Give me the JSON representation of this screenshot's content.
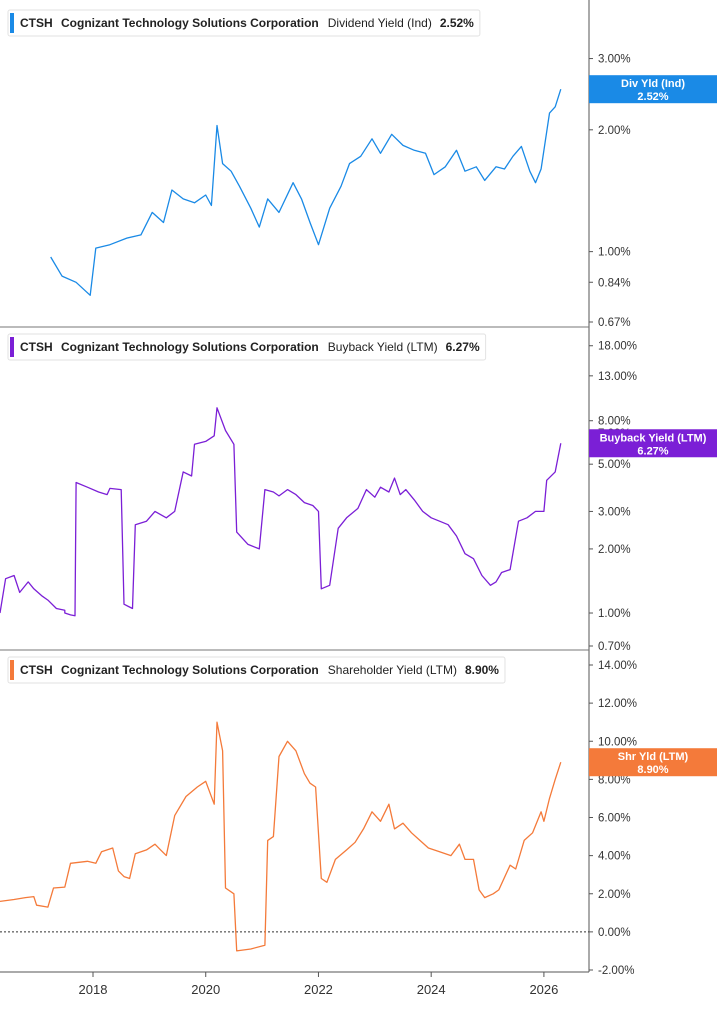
{
  "chart_data": [
    {
      "type": "line",
      "ticker": "CTSH",
      "company": "Cognizant Technology Solutions Corporation",
      "metric": "Dividend Yield (Ind)",
      "current_value": "2.52%",
      "flag_label": "Div Yld (Ind)",
      "flag_value": "2.52%",
      "color": "#1a8ae6",
      "scale": "log",
      "ylim": [
        0.67,
        4.0
      ],
      "y_ticks": [
        {
          "v": 3.0,
          "label": "3.00%"
        },
        {
          "v": 2.0,
          "label": "2.00%"
        },
        {
          "v": 1.0,
          "label": "1.00%"
        },
        {
          "v": 0.84,
          "label": "0.84%"
        },
        {
          "v": 0.67,
          "label": "0.67%"
        }
      ],
      "points": [
        [
          2017.25,
          0.97
        ],
        [
          2017.45,
          0.87
        ],
        [
          2017.7,
          0.84
        ],
        [
          2017.95,
          0.78
        ],
        [
          2018.05,
          1.02
        ],
        [
          2018.3,
          1.04
        ],
        [
          2018.6,
          1.08
        ],
        [
          2018.85,
          1.1
        ],
        [
          2019.05,
          1.25
        ],
        [
          2019.25,
          1.18
        ],
        [
          2019.4,
          1.42
        ],
        [
          2019.6,
          1.35
        ],
        [
          2019.8,
          1.32
        ],
        [
          2020.0,
          1.38
        ],
        [
          2020.1,
          1.3
        ],
        [
          2020.2,
          2.05
        ],
        [
          2020.3,
          1.65
        ],
        [
          2020.45,
          1.58
        ],
        [
          2020.6,
          1.45
        ],
        [
          2020.8,
          1.28
        ],
        [
          2020.95,
          1.15
        ],
        [
          2021.1,
          1.35
        ],
        [
          2021.3,
          1.25
        ],
        [
          2021.55,
          1.48
        ],
        [
          2021.7,
          1.35
        ],
        [
          2021.85,
          1.18
        ],
        [
          2022.0,
          1.04
        ],
        [
          2022.2,
          1.28
        ],
        [
          2022.4,
          1.45
        ],
        [
          2022.55,
          1.65
        ],
        [
          2022.75,
          1.72
        ],
        [
          2022.95,
          1.9
        ],
        [
          2023.1,
          1.75
        ],
        [
          2023.3,
          1.95
        ],
        [
          2023.5,
          1.83
        ],
        [
          2023.7,
          1.78
        ],
        [
          2023.9,
          1.75
        ],
        [
          2024.05,
          1.55
        ],
        [
          2024.25,
          1.62
        ],
        [
          2024.45,
          1.78
        ],
        [
          2024.6,
          1.58
        ],
        [
          2024.8,
          1.62
        ],
        [
          2024.95,
          1.5
        ],
        [
          2025.15,
          1.62
        ],
        [
          2025.3,
          1.6
        ],
        [
          2025.45,
          1.72
        ],
        [
          2025.6,
          1.82
        ],
        [
          2025.75,
          1.58
        ],
        [
          2025.85,
          1.48
        ],
        [
          2025.95,
          1.6
        ],
        [
          2026.1,
          2.2
        ],
        [
          2026.2,
          2.28
        ],
        [
          2026.3,
          2.52
        ]
      ]
    },
    {
      "type": "line",
      "ticker": "CTSH",
      "company": "Cognizant Technology Solutions Corporation",
      "metric": "Buyback Yield (LTM)",
      "current_value": "6.27%",
      "flag_label": "Buyback Yield (LTM)",
      "flag_value": "6.27%",
      "color": "#7b1fd6",
      "scale": "log",
      "ylim": [
        0.7,
        20.0
      ],
      "y_ticks": [
        {
          "v": 18.0,
          "label": "18.00%"
        },
        {
          "v": 13.0,
          "label": "13.00%"
        },
        {
          "v": 8.0,
          "label": "8.00%"
        },
        {
          "v": 7.0,
          "label": "7.00%"
        },
        {
          "v": 5.0,
          "label": "5.00%"
        },
        {
          "v": 3.0,
          "label": "3.00%"
        },
        {
          "v": 2.0,
          "label": "2.00%"
        },
        {
          "v": 1.0,
          "label": "1.00%"
        },
        {
          "v": 0.7,
          "label": "0.70%"
        }
      ],
      "points": [
        [
          2016.35,
          1.0
        ],
        [
          2016.45,
          1.45
        ],
        [
          2016.6,
          1.5
        ],
        [
          2016.7,
          1.25
        ],
        [
          2016.85,
          1.4
        ],
        [
          2016.95,
          1.3
        ],
        [
          2017.1,
          1.2
        ],
        [
          2017.2,
          1.15
        ],
        [
          2017.35,
          1.05
        ],
        [
          2017.5,
          1.03
        ],
        [
          2017.5,
          1.0
        ],
        [
          2017.6,
          0.98
        ],
        [
          2017.68,
          0.97
        ],
        [
          2017.7,
          4.1
        ],
        [
          2017.9,
          3.9
        ],
        [
          2018.1,
          3.7
        ],
        [
          2018.25,
          3.6
        ],
        [
          2018.3,
          3.85
        ],
        [
          2018.5,
          3.8
        ],
        [
          2018.55,
          1.1
        ],
        [
          2018.7,
          1.05
        ],
        [
          2018.75,
          2.6
        ],
        [
          2018.95,
          2.7
        ],
        [
          2019.1,
          3.0
        ],
        [
          2019.3,
          2.8
        ],
        [
          2019.45,
          3.0
        ],
        [
          2019.6,
          4.6
        ],
        [
          2019.75,
          4.4
        ],
        [
          2019.8,
          6.2
        ],
        [
          2020.0,
          6.4
        ],
        [
          2020.15,
          6.8
        ],
        [
          2020.2,
          9.2
        ],
        [
          2020.35,
          7.2
        ],
        [
          2020.5,
          6.2
        ],
        [
          2020.55,
          2.4
        ],
        [
          2020.75,
          2.1
        ],
        [
          2020.95,
          2.0
        ],
        [
          2021.05,
          3.8
        ],
        [
          2021.2,
          3.7
        ],
        [
          2021.3,
          3.55
        ],
        [
          2021.45,
          3.8
        ],
        [
          2021.6,
          3.6
        ],
        [
          2021.75,
          3.3
        ],
        [
          2021.9,
          3.2
        ],
        [
          2022.0,
          3.0
        ],
        [
          2022.05,
          1.3
        ],
        [
          2022.2,
          1.35
        ],
        [
          2022.35,
          2.5
        ],
        [
          2022.5,
          2.8
        ],
        [
          2022.7,
          3.1
        ],
        [
          2022.85,
          3.8
        ],
        [
          2023.0,
          3.5
        ],
        [
          2023.1,
          3.9
        ],
        [
          2023.25,
          3.7
        ],
        [
          2023.35,
          4.3
        ],
        [
          2023.45,
          3.6
        ],
        [
          2023.55,
          3.8
        ],
        [
          2023.7,
          3.4
        ],
        [
          2023.85,
          3.0
        ],
        [
          2024.0,
          2.8
        ],
        [
          2024.15,
          2.7
        ],
        [
          2024.3,
          2.6
        ],
        [
          2024.45,
          2.3
        ],
        [
          2024.6,
          1.9
        ],
        [
          2024.75,
          1.8
        ],
        [
          2024.9,
          1.5
        ],
        [
          2025.05,
          1.35
        ],
        [
          2025.15,
          1.4
        ],
        [
          2025.25,
          1.55
        ],
        [
          2025.4,
          1.6
        ],
        [
          2025.55,
          2.7
        ],
        [
          2025.7,
          2.8
        ],
        [
          2025.85,
          3.0
        ],
        [
          2026.0,
          3.0
        ],
        [
          2026.05,
          4.2
        ],
        [
          2026.2,
          4.6
        ],
        [
          2026.3,
          6.27
        ]
      ]
    },
    {
      "type": "line",
      "ticker": "CTSH",
      "company": "Cognizant Technology Solutions Corporation",
      "metric": "Shareholder Yield (LTM)",
      "current_value": "8.90%",
      "flag_label": "Shr Yld (LTM)",
      "flag_value": "8.90%",
      "color": "#f47a3a",
      "scale": "linear",
      "ylim": [
        -2.0,
        14.0
      ],
      "zero_line": true,
      "y_ticks": [
        {
          "v": 14.0,
          "label": "14.00%"
        },
        {
          "v": 12.0,
          "label": "12.00%"
        },
        {
          "v": 10.0,
          "label": "10.00%"
        },
        {
          "v": 8.0,
          "label": "8.00%"
        },
        {
          "v": 6.0,
          "label": "6.00%"
        },
        {
          "v": 4.0,
          "label": "4.00%"
        },
        {
          "v": 2.0,
          "label": "2.00%"
        },
        {
          "v": 0.0,
          "label": "0.00%"
        },
        {
          "v": -2.0,
          "label": "-2.00%"
        }
      ],
      "points": [
        [
          2016.35,
          1.6
        ],
        [
          2016.6,
          1.7
        ],
        [
          2016.8,
          1.8
        ],
        [
          2016.95,
          1.85
        ],
        [
          2017.0,
          1.4
        ],
        [
          2017.2,
          1.3
        ],
        [
          2017.3,
          2.3
        ],
        [
          2017.5,
          2.35
        ],
        [
          2017.6,
          3.6
        ],
        [
          2017.9,
          3.7
        ],
        [
          2018.05,
          3.6
        ],
        [
          2018.15,
          4.2
        ],
        [
          2018.35,
          4.4
        ],
        [
          2018.45,
          3.2
        ],
        [
          2018.55,
          2.9
        ],
        [
          2018.65,
          2.8
        ],
        [
          2018.75,
          4.1
        ],
        [
          2018.95,
          4.3
        ],
        [
          2019.1,
          4.6
        ],
        [
          2019.2,
          4.3
        ],
        [
          2019.3,
          4.0
        ],
        [
          2019.45,
          6.1
        ],
        [
          2019.65,
          7.1
        ],
        [
          2019.85,
          7.6
        ],
        [
          2020.0,
          7.9
        ],
        [
          2020.15,
          6.7
        ],
        [
          2020.2,
          11.0
        ],
        [
          2020.3,
          9.5
        ],
        [
          2020.35,
          2.3
        ],
        [
          2020.5,
          2.0
        ],
        [
          2020.55,
          -1.0
        ],
        [
          2020.8,
          -0.9
        ],
        [
          2021.05,
          -0.7
        ],
        [
          2021.1,
          4.8
        ],
        [
          2021.2,
          5.0
        ],
        [
          2021.3,
          9.2
        ],
        [
          2021.45,
          10.0
        ],
        [
          2021.6,
          9.5
        ],
        [
          2021.75,
          8.3
        ],
        [
          2021.85,
          7.8
        ],
        [
          2021.95,
          7.6
        ],
        [
          2022.05,
          2.8
        ],
        [
          2022.15,
          2.6
        ],
        [
          2022.3,
          3.8
        ],
        [
          2022.5,
          4.3
        ],
        [
          2022.65,
          4.7
        ],
        [
          2022.8,
          5.4
        ],
        [
          2022.95,
          6.3
        ],
        [
          2023.1,
          5.8
        ],
        [
          2023.25,
          6.7
        ],
        [
          2023.35,
          5.4
        ],
        [
          2023.5,
          5.7
        ],
        [
          2023.65,
          5.2
        ],
        [
          2023.8,
          4.8
        ],
        [
          2023.95,
          4.4
        ],
        [
          2024.15,
          4.2
        ],
        [
          2024.35,
          4.0
        ],
        [
          2024.5,
          4.6
        ],
        [
          2024.6,
          3.8
        ],
        [
          2024.75,
          3.8
        ],
        [
          2024.85,
          2.2
        ],
        [
          2024.95,
          1.8
        ],
        [
          2025.1,
          2.0
        ],
        [
          2025.2,
          2.2
        ],
        [
          2025.4,
          3.5
        ],
        [
          2025.5,
          3.3
        ],
        [
          2025.65,
          4.8
        ],
        [
          2025.8,
          5.2
        ],
        [
          2025.95,
          6.3
        ],
        [
          2026.0,
          5.8
        ],
        [
          2026.1,
          7.0
        ],
        [
          2026.2,
          8.0
        ],
        [
          2026.3,
          8.9
        ]
      ]
    }
  ],
  "x_axis": {
    "ticks": [
      {
        "v": 2018,
        "label": "2018"
      },
      {
        "v": 2020,
        "label": "2020"
      },
      {
        "v": 2022,
        "label": "2022"
      },
      {
        "v": 2024,
        "label": "2024"
      },
      {
        "v": 2026,
        "label": "2026"
      }
    ],
    "xlim": [
      2016.35,
      2026.8
    ]
  }
}
